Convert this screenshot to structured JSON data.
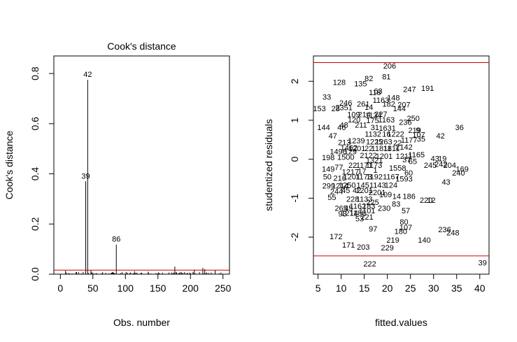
{
  "chart_data": [
    {
      "type": "bar",
      "title": "Cook's distance",
      "xlabel": "Obs. number",
      "ylabel": "Cook's distance",
      "xlim": [
        -10,
        260
      ],
      "ylim": [
        0,
        0.87
      ],
      "xticks": [
        0,
        50,
        100,
        150,
        200,
        250
      ],
      "yticks": [
        0.0,
        0.2,
        0.4,
        0.6,
        0.8
      ],
      "xtick_labels": [
        "0",
        "50",
        "100",
        "150",
        "200",
        "250"
      ],
      "ytick_labels": [
        "0.0",
        "0.2",
        "0.4",
        "0.6",
        "0.8"
      ],
      "threshold": 0.016,
      "threshold_color": "#cc0000",
      "n": 250,
      "labeled": [
        {
          "x": 42,
          "y": 0.775,
          "label": "42"
        },
        {
          "x": 39,
          "y": 0.37,
          "label": "39"
        },
        {
          "x": 86,
          "y": 0.118,
          "label": "86"
        }
      ],
      "small_spikes": [
        {
          "x": 176,
          "y": 0.03
        },
        {
          "x": 219,
          "y": 0.025
        },
        {
          "x": 222,
          "y": 0.02
        },
        {
          "x": 206,
          "y": 0.018
        },
        {
          "x": 8,
          "y": 0.014
        },
        {
          "x": 47,
          "y": 0.015
        },
        {
          "x": 114,
          "y": 0.012
        },
        {
          "x": 135,
          "y": 0.01
        },
        {
          "x": 238,
          "y": 0.015
        }
      ],
      "grid": false
    },
    {
      "type": "scatter",
      "xlabel": "fitted.values",
      "ylabel": "studentized residuals",
      "xlim": [
        4,
        42
      ],
      "ylim": [
        -2.95,
        2.65
      ],
      "xticks": [
        5,
        10,
        15,
        20,
        25,
        30,
        35,
        40
      ],
      "yticks": [
        -2,
        -1,
        0,
        1,
        2
      ],
      "xtick_labels": [
        "5",
        "10",
        "15",
        "20",
        "25",
        "30",
        "35",
        "40"
      ],
      "ytick_labels": [
        "-2",
        "-1",
        "0",
        "1",
        "2"
      ],
      "hlines": [
        2.48,
        -2.48
      ],
      "hline_color": "#cc0000",
      "grid": false,
      "points": [
        {
          "x": 20.5,
          "y": 2.4,
          "label": "206"
        },
        {
          "x": 19.8,
          "y": 2.12,
          "label": "81"
        },
        {
          "x": 16.0,
          "y": 2.08,
          "label": "82"
        },
        {
          "x": 14.2,
          "y": 1.94,
          "label": "135"
        },
        {
          "x": 9.6,
          "y": 1.98,
          "label": "128"
        },
        {
          "x": 24.8,
          "y": 1.8,
          "label": "247"
        },
        {
          "x": 28.7,
          "y": 1.82,
          "label": "191"
        },
        {
          "x": 17.3,
          "y": 1.72,
          "label": "118"
        },
        {
          "x": 18.0,
          "y": 1.75,
          "label": "63"
        },
        {
          "x": 21.3,
          "y": 1.58,
          "label": "148"
        },
        {
          "x": 6.9,
          "y": 1.6,
          "label": "33"
        },
        {
          "x": 11.0,
          "y": 1.45,
          "label": "246"
        },
        {
          "x": 14.8,
          "y": 1.42,
          "label": "261"
        },
        {
          "x": 18.6,
          "y": 1.52,
          "label": "1163"
        },
        {
          "x": 20.3,
          "y": 1.42,
          "label": "182"
        },
        {
          "x": 23.6,
          "y": 1.4,
          "label": "207"
        },
        {
          "x": 22.6,
          "y": 1.3,
          "label": "144"
        },
        {
          "x": 5.3,
          "y": 1.3,
          "label": "153"
        },
        {
          "x": 8.8,
          "y": 1.3,
          "label": "28"
        },
        {
          "x": 10.6,
          "y": 1.33,
          "label": "2351"
        },
        {
          "x": 16.0,
          "y": 1.34,
          "label": "14"
        },
        {
          "x": 12.7,
          "y": 1.15,
          "label": "109"
        },
        {
          "x": 15.0,
          "y": 1.15,
          "label": "214"
        },
        {
          "x": 17.0,
          "y": 1.13,
          "label": "1134"
        },
        {
          "x": 18.6,
          "y": 1.16,
          "label": "227"
        },
        {
          "x": 25.6,
          "y": 1.05,
          "label": "250"
        },
        {
          "x": 12.8,
          "y": 1.02,
          "label": "120"
        },
        {
          "x": 16.8,
          "y": 1.0,
          "label": "175"
        },
        {
          "x": 19.8,
          "y": 1.02,
          "label": "1163"
        },
        {
          "x": 23.9,
          "y": 0.95,
          "label": "236"
        },
        {
          "x": 14.3,
          "y": 0.88,
          "label": "211"
        },
        {
          "x": 17.3,
          "y": 0.82,
          "label": "31"
        },
        {
          "x": 10.6,
          "y": 0.88,
          "label": "48"
        },
        {
          "x": 6.2,
          "y": 0.82,
          "label": "144"
        },
        {
          "x": 10.1,
          "y": 0.82,
          "label": "46"
        },
        {
          "x": 20.0,
          "y": 0.8,
          "label": "1631"
        },
        {
          "x": 25.9,
          "y": 0.75,
          "label": "219"
        },
        {
          "x": 26.6,
          "y": 0.75,
          "label": "9"
        },
        {
          "x": 35.6,
          "y": 0.82,
          "label": "36"
        },
        {
          "x": 8.2,
          "y": 0.6,
          "label": "47"
        },
        {
          "x": 16.9,
          "y": 0.65,
          "label": "1132"
        },
        {
          "x": 19.8,
          "y": 0.65,
          "label": "16"
        },
        {
          "x": 21.8,
          "y": 0.65,
          "label": "1222"
        },
        {
          "x": 26.8,
          "y": 0.63,
          "label": "107"
        },
        {
          "x": 31.5,
          "y": 0.6,
          "label": "42"
        },
        {
          "x": 27.3,
          "y": 0.52,
          "label": "35"
        },
        {
          "x": 24.7,
          "y": 0.5,
          "label": "1177"
        },
        {
          "x": 10.7,
          "y": 0.43,
          "label": "213"
        },
        {
          "x": 13.3,
          "y": 0.48,
          "label": "1239"
        },
        {
          "x": 17.2,
          "y": 0.45,
          "label": "1225"
        },
        {
          "x": 19.2,
          "y": 0.45,
          "label": "1263"
        },
        {
          "x": 22.2,
          "y": 0.42,
          "label": "22"
        },
        {
          "x": 11.7,
          "y": 0.3,
          "label": "1462"
        },
        {
          "x": 13.4,
          "y": 0.28,
          "label": "1201"
        },
        {
          "x": 16.0,
          "y": 0.28,
          "label": "22"
        },
        {
          "x": 18.7,
          "y": 0.28,
          "label": "11811"
        },
        {
          "x": 20.9,
          "y": 0.28,
          "label": "1811"
        },
        {
          "x": 23.6,
          "y": 0.32,
          "label": "2142"
        },
        {
          "x": 9.4,
          "y": 0.2,
          "label": "1496"
        },
        {
          "x": 12.0,
          "y": 0.2,
          "label": "129"
        },
        {
          "x": 15.9,
          "y": 0.1,
          "label": "2122"
        },
        {
          "x": 19.3,
          "y": 0.08,
          "label": "1201"
        },
        {
          "x": 23.6,
          "y": 0.08,
          "label": "1211"
        },
        {
          "x": 26.3,
          "y": 0.12,
          "label": "1165"
        },
        {
          "x": 7.2,
          "y": 0.05,
          "label": "198"
        },
        {
          "x": 11.0,
          "y": 0.06,
          "label": "1500"
        },
        {
          "x": 17.2,
          "y": -0.02,
          "label": "1321"
        },
        {
          "x": 24.2,
          "y": -0.01,
          "label": "37"
        },
        {
          "x": 25.5,
          "y": -0.05,
          "label": "65"
        },
        {
          "x": 30.3,
          "y": 0.02,
          "label": "43"
        },
        {
          "x": 31.9,
          "y": 0.02,
          "label": "19"
        },
        {
          "x": 12.5,
          "y": -0.15,
          "label": "22"
        },
        {
          "x": 15.0,
          "y": -0.15,
          "label": "1171"
        },
        {
          "x": 17.1,
          "y": -0.15,
          "label": "1173"
        },
        {
          "x": 29.3,
          "y": -0.15,
          "label": "245"
        },
        {
          "x": 31.6,
          "y": -0.12,
          "label": "242"
        },
        {
          "x": 33.5,
          "y": -0.15,
          "label": "204"
        },
        {
          "x": 7.2,
          "y": -0.25,
          "label": "149"
        },
        {
          "x": 9.5,
          "y": -0.2,
          "label": "77"
        },
        {
          "x": 12.0,
          "y": -0.32,
          "label": "1217"
        },
        {
          "x": 14.5,
          "y": -0.3,
          "label": "17"
        },
        {
          "x": 17.4,
          "y": -0.28,
          "label": "1"
        },
        {
          "x": 22.2,
          "y": -0.22,
          "label": "1558"
        },
        {
          "x": 24.6,
          "y": -0.35,
          "label": "60"
        },
        {
          "x": 36.2,
          "y": -0.25,
          "label": "169"
        },
        {
          "x": 35.4,
          "y": -0.35,
          "label": "240"
        },
        {
          "x": 7.0,
          "y": -0.45,
          "label": "50"
        },
        {
          "x": 9.7,
          "y": -0.48,
          "label": "216"
        },
        {
          "x": 12.3,
          "y": -0.45,
          "label": "1201"
        },
        {
          "x": 14.9,
          "y": -0.45,
          "label": "1173"
        },
        {
          "x": 17.2,
          "y": -0.45,
          "label": "1192"
        },
        {
          "x": 20.8,
          "y": -0.45,
          "label": "1167"
        },
        {
          "x": 23.6,
          "y": -0.5,
          "label": "1593"
        },
        {
          "x": 32.7,
          "y": -0.58,
          "label": "43"
        },
        {
          "x": 7.3,
          "y": -0.68,
          "label": "299"
        },
        {
          "x": 9.8,
          "y": -0.68,
          "label": "1214"
        },
        {
          "x": 11.3,
          "y": -0.66,
          "label": "1250"
        },
        {
          "x": 14.7,
          "y": -0.66,
          "label": "145"
        },
        {
          "x": 17.9,
          "y": -0.66,
          "label": "1143"
        },
        {
          "x": 20.8,
          "y": -0.66,
          "label": "124"
        },
        {
          "x": 9.0,
          "y": -0.82,
          "label": "244"
        },
        {
          "x": 11.0,
          "y": -0.8,
          "label": "45"
        },
        {
          "x": 13.4,
          "y": -0.8,
          "label": "42"
        },
        {
          "x": 15.0,
          "y": -0.8,
          "label": "1201"
        },
        {
          "x": 17.8,
          "y": -0.85,
          "label": "2201"
        },
        {
          "x": 19.6,
          "y": -0.9,
          "label": "109"
        },
        {
          "x": 22.0,
          "y": -0.95,
          "label": "14"
        },
        {
          "x": 24.7,
          "y": -0.95,
          "label": "186"
        },
        {
          "x": 8.0,
          "y": -0.98,
          "label": "55"
        },
        {
          "x": 12.5,
          "y": -1.02,
          "label": "228"
        },
        {
          "x": 15.0,
          "y": -1.02,
          "label": "1133"
        },
        {
          "x": 16.8,
          "y": -1.1,
          "label": "225"
        },
        {
          "x": 28.4,
          "y": -1.05,
          "label": "220"
        },
        {
          "x": 29.5,
          "y": -1.05,
          "label": "12"
        },
        {
          "x": 10.0,
          "y": -1.25,
          "label": "265"
        },
        {
          "x": 11.6,
          "y": -1.25,
          "label": "45"
        },
        {
          "x": 13.6,
          "y": -1.2,
          "label": "1162"
        },
        {
          "x": 16.0,
          "y": -1.2,
          "label": "183"
        },
        {
          "x": 19.3,
          "y": -1.25,
          "label": "230"
        },
        {
          "x": 21.9,
          "y": -1.15,
          "label": "83"
        },
        {
          "x": 10.3,
          "y": -1.4,
          "label": "93"
        },
        {
          "x": 11.8,
          "y": -1.38,
          "label": "1214"
        },
        {
          "x": 13.6,
          "y": -1.38,
          "label": "1188"
        },
        {
          "x": 15.6,
          "y": -1.32,
          "label": "1101"
        },
        {
          "x": 24.0,
          "y": -1.32,
          "label": "57"
        },
        {
          "x": 14.0,
          "y": -1.52,
          "label": "53"
        },
        {
          "x": 15.6,
          "y": -1.48,
          "label": "221"
        },
        {
          "x": 23.6,
          "y": -1.6,
          "label": "80"
        },
        {
          "x": 24.0,
          "y": -1.75,
          "label": "107"
        },
        {
          "x": 22.9,
          "y": -1.85,
          "label": "180"
        },
        {
          "x": 16.9,
          "y": -1.78,
          "label": "97"
        },
        {
          "x": 32.4,
          "y": -1.8,
          "label": "236"
        },
        {
          "x": 34.2,
          "y": -1.88,
          "label": "248"
        },
        {
          "x": 8.9,
          "y": -1.98,
          "label": "172"
        },
        {
          "x": 21.2,
          "y": -2.07,
          "label": "219"
        },
        {
          "x": 28.0,
          "y": -2.07,
          "label": "140"
        },
        {
          "x": 11.6,
          "y": -2.2,
          "label": "171"
        },
        {
          "x": 14.8,
          "y": -2.25,
          "label": "203"
        },
        {
          "x": 20.0,
          "y": -2.27,
          "label": "229"
        },
        {
          "x": 16.2,
          "y": -2.68,
          "label": "222"
        },
        {
          "x": 40.6,
          "y": -2.65,
          "label": "39"
        }
      ]
    }
  ]
}
